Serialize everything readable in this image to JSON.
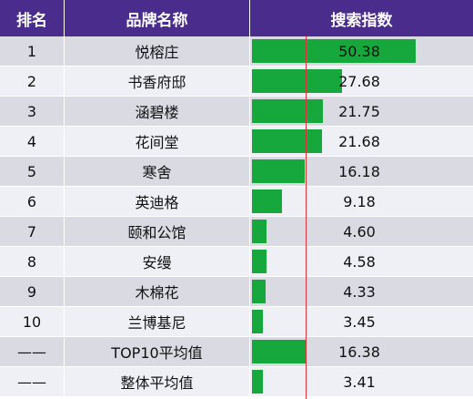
{
  "headers": {
    "rank": "排名",
    "brand": "品牌名称",
    "index": "搜索指数"
  },
  "colors": {
    "header_bg": "#4a2c8c",
    "row_odd": "#d9dae2",
    "row_even": "#eef0f6",
    "bar": "#16a83c",
    "avg_line": "#e0303a"
  },
  "chart_data": {
    "type": "bar",
    "orientation": "horizontal",
    "xlim": [
      0,
      50.38
    ],
    "rows": [
      {
        "rank": "1",
        "brand": "悦榕庄",
        "value": 50.38,
        "label": "50.38"
      },
      {
        "rank": "2",
        "brand": "书香府邸",
        "value": 27.68,
        "label": "27.68"
      },
      {
        "rank": "3",
        "brand": "涵碧楼",
        "value": 21.75,
        "label": "21.75"
      },
      {
        "rank": "4",
        "brand": "花间堂",
        "value": 21.68,
        "label": "21.68"
      },
      {
        "rank": "5",
        "brand": "寒舍",
        "value": 16.18,
        "label": "16.18"
      },
      {
        "rank": "6",
        "brand": "英迪格",
        "value": 9.18,
        "label": "9.18"
      },
      {
        "rank": "7",
        "brand": "颐和公馆",
        "value": 4.6,
        "label": "4.60"
      },
      {
        "rank": "8",
        "brand": "安缦",
        "value": 4.58,
        "label": "4.58"
      },
      {
        "rank": "9",
        "brand": "木棉花",
        "value": 4.33,
        "label": "4.33"
      },
      {
        "rank": "10",
        "brand": "兰博基尼",
        "value": 3.45,
        "label": "3.45"
      },
      {
        "rank": "——",
        "brand": "TOP10平均值",
        "value": 16.38,
        "label": "16.38"
      },
      {
        "rank": "——",
        "brand": "整体平均值",
        "value": 3.41,
        "label": "3.41"
      }
    ],
    "reference_line": 16.38
  }
}
